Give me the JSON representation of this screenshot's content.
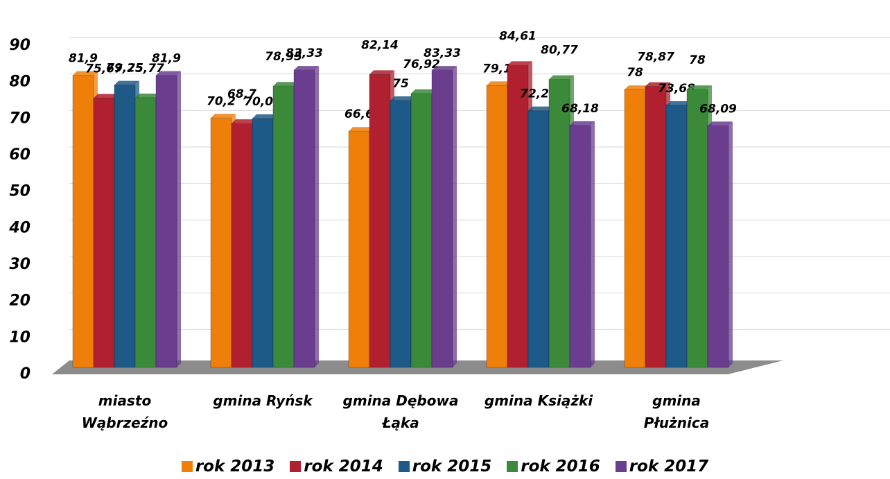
{
  "chart_data": {
    "type": "bar",
    "categories": [
      "miasto Wąbrzeźno",
      "gmina Ryńsk",
      "gmina Dębowa Łąka",
      "gmina Książki",
      "gmina Płużnica"
    ],
    "series": [
      {
        "name": "rok 2013",
        "color": "#f07f09",
        "values": [
          81.9,
          70.2,
          66.6,
          79.1,
          78
        ],
        "value_labels": [
          "81,9",
          "70,2",
          "66,6",
          "79,1",
          "78"
        ]
      },
      {
        "name": "rok 2014",
        "color": "#b0202e",
        "values": [
          75.67,
          68.7,
          82.14,
          84.61,
          78.87
        ],
        "value_labels": [
          "75,67",
          "68,7",
          "82,14",
          "84,61",
          "78,87"
        ]
      },
      {
        "name": "rok 2015",
        "color": "#1d5a88",
        "values": [
          79.25,
          70.09,
          75,
          72.22,
          73.68
        ],
        "value_labels": [
          "79,25",
          "70,09",
          "75",
          "72,22",
          "73,68"
        ]
      },
      {
        "name": "rok 2016",
        "color": "#3a8a3a",
        "values": [
          75.77,
          78.95,
          76.92,
          80.77,
          78
        ],
        "value_labels": [
          "75,77",
          "78,95",
          "76,92",
          "80,77",
          "78"
        ]
      },
      {
        "name": "rok 2017",
        "color": "#6a3d8f",
        "values": [
          81.9,
          83.33,
          83.33,
          68.18,
          68.09
        ],
        "value_labels": [
          "81,9",
          "83,33",
          "83,33",
          "68,18",
          "68,09"
        ]
      }
    ],
    "ylim": [
      0,
      90
    ],
    "yticks": [
      0,
      10,
      20,
      30,
      40,
      50,
      60,
      70,
      80,
      90
    ],
    "grid": true,
    "legend": "bottom"
  }
}
